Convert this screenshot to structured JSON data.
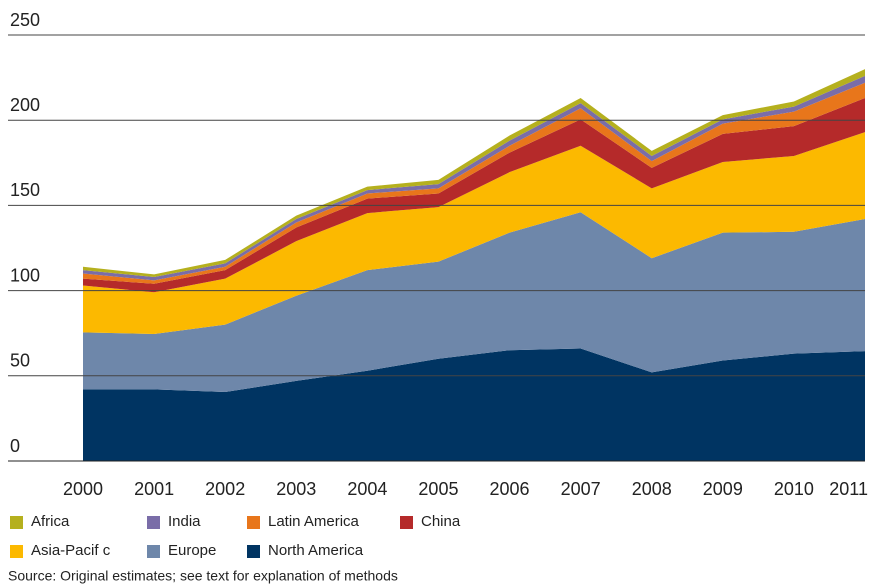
{
  "chart_data": {
    "type": "stacked_area",
    "categories": [
      "2000",
      "2001",
      "2002",
      "2003",
      "2004",
      "2005",
      "2006",
      "2007",
      "2008",
      "2009",
      "2010",
      "2011"
    ],
    "series": [
      {
        "name": "North America",
        "color": "#003462",
        "values": [
          42,
          42,
          40.5,
          47,
          53,
          60,
          65,
          66,
          52,
          59,
          63,
          64.5
        ]
      },
      {
        "name": "Europe",
        "color": "#6e87aa",
        "values": [
          33.5,
          32.5,
          39.5,
          50,
          59,
          57,
          69,
          80,
          67,
          75,
          71.5,
          77.5
        ]
      },
      {
        "name": "Asia-Pacif c",
        "color": "#fcb900",
        "values": [
          27.5,
          24.5,
          27,
          32,
          33.5,
          32,
          35.5,
          39,
          41,
          41.5,
          44.5,
          51
        ]
      },
      {
        "name": "China",
        "color": "#b52a2a",
        "values": [
          4,
          5,
          5,
          8,
          8.5,
          8,
          11.5,
          15.5,
          12,
          16.5,
          17.5,
          20
        ]
      },
      {
        "name": "Latin America",
        "color": "#e8761b",
        "values": [
          3,
          2,
          2,
          3,
          3,
          3,
          4,
          6.5,
          4,
          6,
          8.5,
          9
        ]
      },
      {
        "name": "India",
        "color": "#7a6da8",
        "values": [
          2,
          2,
          2,
          2,
          2,
          2.5,
          3,
          3,
          3,
          2.5,
          3,
          4
        ]
      },
      {
        "name": "Africa",
        "color": "#b5b01e",
        "values": [
          2,
          1.5,
          2,
          2,
          2,
          2.5,
          3,
          3,
          3,
          2.5,
          3,
          4
        ]
      }
    ],
    "ylim": [
      0,
      250
    ],
    "yticks": [
      0,
      50,
      100,
      150,
      200,
      250
    ],
    "grid": true,
    "source": "Source: Original estimates; see text for explanation of methods"
  }
}
